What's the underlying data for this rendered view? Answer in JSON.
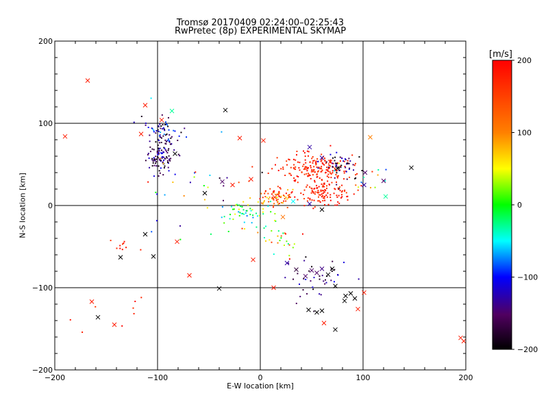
{
  "chart_data": {
    "type": "scatter",
    "title": "Tromsø 20170409 02:24:00–02:25:43",
    "subtitle": "RwPretec (8p) EXPERIMENTAL SKYMAP",
    "xlabel": "E-W location [km]",
    "ylabel": "N-S location [km]",
    "xlim": [
      -200,
      200
    ],
    "ylim": [
      -200,
      200
    ],
    "xticks": [
      "−200",
      "−100",
      "0",
      "100",
      "200"
    ],
    "yticks": [
      "−200",
      "−100",
      "0",
      "100",
      "200"
    ],
    "grid": true,
    "colorbar": {
      "label": "[m/s]",
      "range": [
        -200,
        200
      ],
      "ticks": [
        "200",
        "100",
        "0",
        "−100",
        "−200"
      ]
    },
    "markers_x": [
      {
        "x": -168,
        "y": 152,
        "v": 180
      },
      {
        "x": -190,
        "y": 84,
        "v": 180
      },
      {
        "x": -112,
        "y": 122,
        "v": 180
      },
      {
        "x": -96,
        "y": 104,
        "v": 180
      },
      {
        "x": -86,
        "y": 115,
        "v": -30
      },
      {
        "x": -34,
        "y": 116,
        "v": -200
      },
      {
        "x": -20,
        "y": 82,
        "v": 180
      },
      {
        "x": -83,
        "y": 63,
        "v": -200
      },
      {
        "x": -37,
        "y": 29,
        "v": -150
      },
      {
        "x": -27,
        "y": 25,
        "v": 180
      },
      {
        "x": -54,
        "y": 15,
        "v": -200
      },
      {
        "x": -9,
        "y": 32,
        "v": 180
      },
      {
        "x": 3,
        "y": 79,
        "v": 180
      },
      {
        "x": 14,
        "y": 10,
        "v": 160
      },
      {
        "x": 22,
        "y": -14,
        "v": 110
      },
      {
        "x": 32,
        "y": 5,
        "v": -50
      },
      {
        "x": 48,
        "y": 2,
        "v": -130
      },
      {
        "x": 60,
        "y": -5,
        "v": -200
      },
      {
        "x": 68,
        "y": 53,
        "v": 180
      },
      {
        "x": 75,
        "y": 45,
        "v": -200
      },
      {
        "x": 107,
        "y": 83,
        "v": 100
      },
      {
        "x": 102,
        "y": 40,
        "v": -150
      },
      {
        "x": 101,
        "y": 25,
        "v": -130
      },
      {
        "x": 120,
        "y": 30,
        "v": -150
      },
      {
        "x": 122,
        "y": 11,
        "v": -30
      },
      {
        "x": 147,
        "y": 46,
        "v": -200
      },
      {
        "x": 60,
        "y": 58,
        "v": -130
      },
      {
        "x": 48,
        "y": 71,
        "v": -130
      },
      {
        "x": -116,
        "y": 87,
        "v": 180
      },
      {
        "x": -112,
        "y": -35,
        "v": -200
      },
      {
        "x": -136,
        "y": -63,
        "v": -200
      },
      {
        "x": -104,
        "y": -62,
        "v": -200
      },
      {
        "x": -81,
        "y": -44,
        "v": 180
      },
      {
        "x": -69,
        "y": -85,
        "v": 180
      },
      {
        "x": -40,
        "y": -101,
        "v": -200
      },
      {
        "x": -7,
        "y": -66,
        "v": 180
      },
      {
        "x": 13,
        "y": -100,
        "v": 180
      },
      {
        "x": 26,
        "y": -70,
        "v": -130
      },
      {
        "x": 35,
        "y": -78,
        "v": -170
      },
      {
        "x": 44,
        "y": -86,
        "v": -150
      },
      {
        "x": 50,
        "y": -79,
        "v": -150
      },
      {
        "x": 55,
        "y": -82,
        "v": -150
      },
      {
        "x": 60,
        "y": -77,
        "v": -140
      },
      {
        "x": 66,
        "y": -84,
        "v": -200
      },
      {
        "x": 70,
        "y": -77,
        "v": -200
      },
      {
        "x": 73,
        "y": -98,
        "v": -200
      },
      {
        "x": 83,
        "y": -110,
        "v": -200
      },
      {
        "x": 88,
        "y": -107,
        "v": -200
      },
      {
        "x": 92,
        "y": -113,
        "v": -200
      },
      {
        "x": 101,
        "y": -106,
        "v": 180
      },
      {
        "x": 60,
        "y": -128,
        "v": -200
      },
      {
        "x": 55,
        "y": -130,
        "v": -200
      },
      {
        "x": 47,
        "y": -127,
        "v": -200
      },
      {
        "x": 73,
        "y": -151,
        "v": -200
      },
      {
        "x": 62,
        "y": -143,
        "v": 180
      },
      {
        "x": 95,
        "y": -126,
        "v": 180
      },
      {
        "x": -164,
        "y": -117,
        "v": 180
      },
      {
        "x": -158,
        "y": -136,
        "v": -200
      },
      {
        "x": -142,
        "y": -145,
        "v": 180
      },
      {
        "x": 195,
        "y": -161,
        "v": 180
      },
      {
        "x": 198,
        "y": -165,
        "v": 180
      },
      {
        "x": 82,
        "y": -116,
        "v": -200
      }
    ],
    "markers_dot_clusters": [
      {
        "cx": -97,
        "cy": 60,
        "sx": 7,
        "sy": 10,
        "n": 110,
        "vmin": -200,
        "vmax": -100
      },
      {
        "cx": -95,
        "cy": 92,
        "sx": 8,
        "sy": 8,
        "n": 55,
        "vmin": -200,
        "vmax": -60
      },
      {
        "cx": 50,
        "cy": 45,
        "sx": 18,
        "sy": 10,
        "n": 190,
        "vmin": 150,
        "vmax": 200
      },
      {
        "cx": 60,
        "cy": 15,
        "sx": 15,
        "sy": 8,
        "n": 110,
        "vmin": 150,
        "vmax": 200
      },
      {
        "cx": 15,
        "cy": 10,
        "sx": 10,
        "sy": 6,
        "n": 70,
        "vmin": 40,
        "vmax": 200
      },
      {
        "cx": -15,
        "cy": -8,
        "sx": 14,
        "sy": 7,
        "n": 55,
        "vmin": -80,
        "vmax": 60
      },
      {
        "cx": 78,
        "cy": 48,
        "sx": 12,
        "sy": 8,
        "n": 45,
        "vmin": -200,
        "vmax": -100
      },
      {
        "cx": 95,
        "cy": 35,
        "sx": 15,
        "sy": 10,
        "n": 20,
        "vmin": -200,
        "vmax": 200
      },
      {
        "cx": 20,
        "cy": -45,
        "sx": 10,
        "sy": 10,
        "n": 25,
        "vmin": -50,
        "vmax": 200
      },
      {
        "cx": 55,
        "cy": -90,
        "sx": 18,
        "sy": 12,
        "n": 40,
        "vmin": -200,
        "vmax": -100
      },
      {
        "cx": -130,
        "cy": -48,
        "sx": 15,
        "sy": 5,
        "n": 10,
        "vmin": 150,
        "vmax": 200
      },
      {
        "cx": -60,
        "cy": 25,
        "sx": 30,
        "sy": 30,
        "n": 35,
        "vmin": -200,
        "vmax": 200
      },
      {
        "cx": -145,
        "cy": -130,
        "sx": 25,
        "sy": 15,
        "n": 8,
        "vmin": 150,
        "vmax": 200
      }
    ]
  }
}
